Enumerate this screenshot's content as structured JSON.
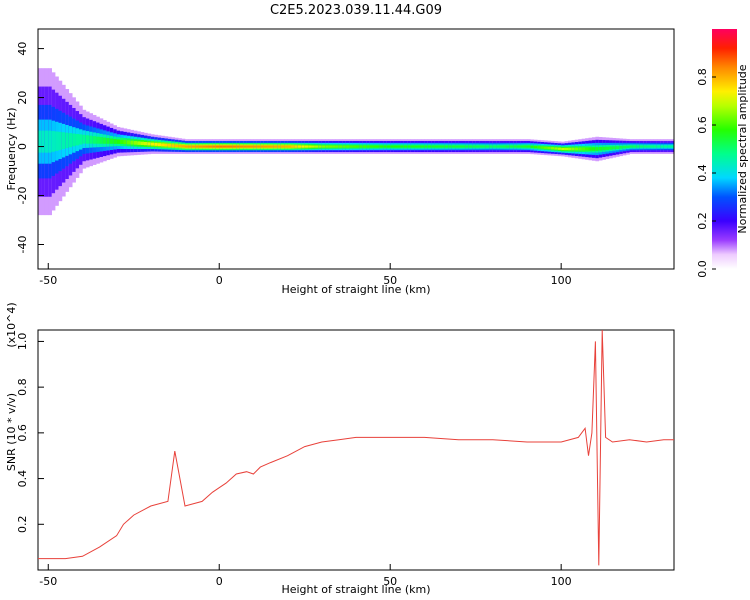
{
  "figure_title": "C2E5.2023.039.11.44.G09",
  "colors": {
    "series_line": "#e8413a",
    "axis": "#000000",
    "background": "#ffffff"
  },
  "chart_data": [
    {
      "type": "heatmap",
      "xlabel": "Height of straight line (km)",
      "ylabel": "Frequency (Hz)",
      "xlim": [
        -53,
        133
      ],
      "ylim": [
        -50,
        48
      ],
      "x_ticks": [
        -50,
        0,
        50,
        100
      ],
      "y_ticks": [
        -40,
        -20,
        0,
        20,
        40
      ],
      "colormap": "rainbow (white -> violet -> blue -> cyan -> green -> yellow -> red)",
      "colorbar": {
        "label": "Normalized spectral amplitude",
        "range": [
          0.0,
          1.0
        ],
        "ticks": [
          0.0,
          0.2,
          0.4,
          0.6,
          0.8
        ]
      },
      "description_points": {
        "height_km": [
          -50,
          -40,
          -30,
          -20,
          -10,
          0,
          10,
          20,
          30,
          40,
          50,
          60,
          70,
          80,
          90,
          100,
          110,
          120,
          130
        ],
        "peak_frequency_hz": [
          2,
          3,
          2,
          1,
          0,
          0,
          0,
          0,
          0,
          0,
          0,
          0,
          0,
          0,
          0,
          -1,
          -1,
          0,
          0
        ],
        "band_halfwidth_hz": [
          30,
          12,
          6,
          4,
          3,
          3,
          3,
          3,
          3,
          3,
          3,
          3,
          3,
          3,
          3,
          3,
          5,
          3,
          3
        ],
        "peak_amplitude": [
          0.45,
          0.5,
          0.62,
          0.8,
          0.9,
          0.95,
          0.92,
          0.88,
          0.7,
          0.65,
          0.62,
          0.6,
          0.58,
          0.55,
          0.6,
          0.75,
          0.6,
          0.55,
          0.5
        ]
      }
    },
    {
      "type": "line",
      "xlabel": "Height of straight line (km)",
      "ylabel": "SNR (10 * v/v)",
      "y_multiplier": "(x10^4)",
      "xlim": [
        -53,
        133
      ],
      "ylim": [
        0.0,
        1.05
      ],
      "x_ticks": [
        -50,
        0,
        50,
        100
      ],
      "y_ticks": [
        0.2,
        0.4,
        0.6,
        0.8,
        1.0
      ],
      "series": [
        {
          "x": [
            -53,
            -45,
            -40,
            -35,
            -30,
            -28,
            -25,
            -20,
            -15,
            -13,
            -10,
            -5,
            -2,
            0,
            2,
            5,
            8,
            10,
            12,
            15,
            20,
            25,
            30,
            35,
            40,
            50,
            60,
            70,
            80,
            90,
            100,
            105,
            107,
            108,
            109,
            110,
            111,
            112,
            113,
            115,
            120,
            125,
            130,
            133
          ],
          "y": [
            0.05,
            0.05,
            0.06,
            0.1,
            0.15,
            0.2,
            0.24,
            0.28,
            0.3,
            0.52,
            0.28,
            0.3,
            0.34,
            0.36,
            0.38,
            0.42,
            0.43,
            0.42,
            0.45,
            0.47,
            0.5,
            0.54,
            0.56,
            0.57,
            0.58,
            0.58,
            0.58,
            0.57,
            0.57,
            0.56,
            0.56,
            0.58,
            0.62,
            0.5,
            0.6,
            1.0,
            0.02,
            1.05,
            0.58,
            0.56,
            0.57,
            0.56,
            0.57,
            0.57
          ]
        }
      ]
    }
  ]
}
